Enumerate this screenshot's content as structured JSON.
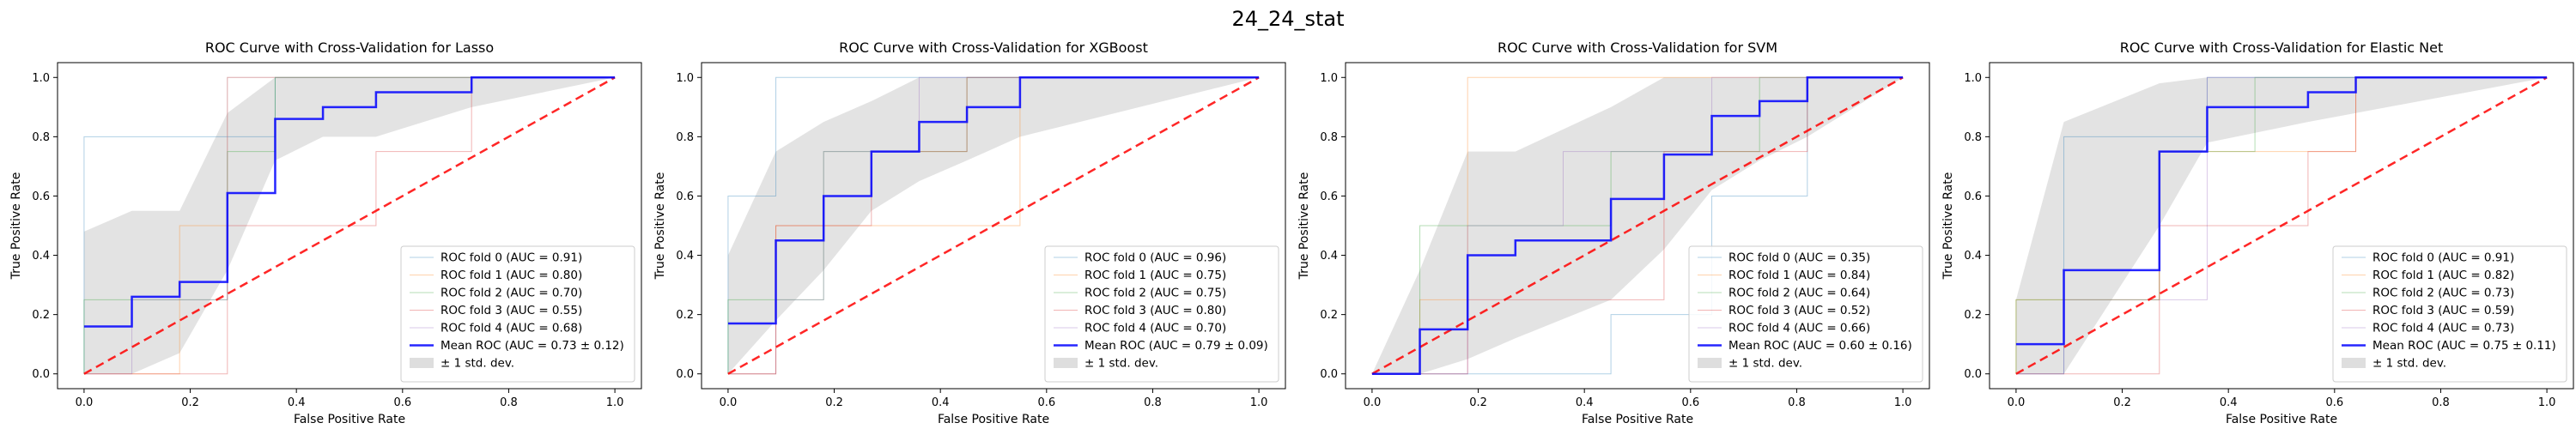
{
  "figure_title": "24_24_stat",
  "chart_data": [
    {
      "type": "line",
      "title": "ROC Curve with Cross-Validation for Lasso",
      "xlabel": "False Positive Rate",
      "ylabel": "True Positive Rate",
      "xlim": [
        -0.05,
        1.05
      ],
      "ylim": [
        -0.05,
        1.05
      ],
      "xticks": [
        "0.0",
        "0.2",
        "0.4",
        "0.6",
        "0.8",
        "1.0"
      ],
      "yticks": [
        "0.0",
        "0.2",
        "0.4",
        "0.6",
        "0.8",
        "1.0"
      ],
      "legend_position": "lower-right",
      "series": [
        {
          "name": "ROC fold 0 (AUC = 0.91)",
          "color": "#1f77b4",
          "x": [
            0,
            0,
            0.36,
            0.36,
            1
          ],
          "y": [
            0,
            0.8,
            0.8,
            1,
            1
          ]
        },
        {
          "name": "ROC fold 1 (AUC = 0.80)",
          "color": "#ff7f0e",
          "x": [
            0,
            0.18,
            0.18,
            0.27,
            0.27,
            1
          ],
          "y": [
            0,
            0,
            0.5,
            0.5,
            1,
            1
          ]
        },
        {
          "name": "ROC fold 2 (AUC = 0.70)",
          "color": "#2ca02c",
          "x": [
            0,
            0,
            0.27,
            0.27,
            0.36,
            0.36,
            1
          ],
          "y": [
            0,
            0.25,
            0.25,
            0.75,
            0.75,
            1,
            1
          ]
        },
        {
          "name": "ROC fold 3 (AUC = 0.55)",
          "color": "#d62728",
          "x": [
            0,
            0.27,
            0.27,
            0.55,
            0.55,
            0.73,
            0.73,
            1
          ],
          "y": [
            0,
            0,
            0.5,
            0.5,
            0.75,
            0.75,
            1,
            1
          ]
        },
        {
          "name": "ROC fold 4 (AUC = 0.68)",
          "color": "#9467bd",
          "x": [
            0,
            0.09,
            0.09,
            0.27,
            0.27,
            1
          ],
          "y": [
            0,
            0,
            0.25,
            0.25,
            1,
            1
          ]
        }
      ],
      "mean": {
        "name": "Mean ROC (AUC = 0.73 ± 0.12)",
        "color": "#0000ff",
        "x": [
          0,
          0.09,
          0.09,
          0.18,
          0.18,
          0.27,
          0.27,
          0.36,
          0.36,
          0.45,
          0.45,
          0.55,
          0.55,
          0.73,
          0.73,
          1
        ],
        "y": [
          0.16,
          0.16,
          0.26,
          0.26,
          0.31,
          0.31,
          0.61,
          0.61,
          0.86,
          0.86,
          0.9,
          0.9,
          0.95,
          0.95,
          1.0,
          1.0
        ]
      },
      "band": {
        "name": "± 1 std. dev.",
        "x": [
          0,
          0.09,
          0.18,
          0.27,
          0.36,
          0.45,
          0.55,
          0.73,
          1
        ],
        "upper": [
          0.48,
          0.55,
          0.55,
          0.88,
          1.0,
          1.0,
          1.0,
          1.0,
          1.0
        ],
        "lower": [
          0.0,
          0.0,
          0.07,
          0.35,
          0.72,
          0.8,
          0.8,
          0.9,
          1.0
        ]
      },
      "chance_line": {
        "x": [
          0,
          1
        ],
        "y": [
          0,
          1
        ],
        "color": "#ff0000"
      }
    },
    {
      "type": "line",
      "title": "ROC Curve with Cross-Validation for XGBoost",
      "xlabel": "False Positive Rate",
      "ylabel": "True Positive Rate",
      "xlim": [
        -0.05,
        1.05
      ],
      "ylim": [
        -0.05,
        1.05
      ],
      "xticks": [
        "0.0",
        "0.2",
        "0.4",
        "0.6",
        "0.8",
        "1.0"
      ],
      "yticks": [
        "0.0",
        "0.2",
        "0.4",
        "0.6",
        "0.8",
        "1.0"
      ],
      "legend_position": "lower-right",
      "series": [
        {
          "name": "ROC fold 0 (AUC = 0.96)",
          "color": "#1f77b4",
          "x": [
            0,
            0,
            0.09,
            0.09,
            1
          ],
          "y": [
            0,
            0.6,
            0.6,
            1,
            1
          ]
        },
        {
          "name": "ROC fold 1 (AUC = 0.75)",
          "color": "#ff7f0e",
          "x": [
            0,
            0.09,
            0.09,
            0.55,
            0.55,
            1
          ],
          "y": [
            0,
            0,
            0.5,
            0.5,
            1,
            1
          ]
        },
        {
          "name": "ROC fold 2 (AUC = 0.75)",
          "color": "#2ca02c",
          "x": [
            0,
            0,
            0.18,
            0.18,
            0.45,
            0.45,
            1
          ],
          "y": [
            0,
            0.25,
            0.25,
            0.75,
            0.75,
            1,
            1
          ]
        },
        {
          "name": "ROC fold 3 (AUC = 0.80)",
          "color": "#d62728",
          "x": [
            0,
            0.09,
            0.09,
            0.27,
            0.27,
            0.45,
            0.45,
            1
          ],
          "y": [
            0,
            0,
            0.5,
            0.5,
            0.75,
            0.75,
            1,
            1
          ]
        },
        {
          "name": "ROC fold 4 (AUC = 0.70)",
          "color": "#9467bd",
          "x": [
            0,
            0.09,
            0.09,
            0.18,
            0.18,
            0.36,
            0.36,
            1
          ],
          "y": [
            0,
            0,
            0.25,
            0.25,
            0.75,
            0.75,
            1,
            1
          ]
        }
      ],
      "mean": {
        "name": "Mean ROC (AUC = 0.79 ± 0.09)",
        "color": "#0000ff",
        "x": [
          0,
          0.09,
          0.09,
          0.18,
          0.18,
          0.27,
          0.27,
          0.36,
          0.36,
          0.45,
          0.45,
          0.55,
          0.55,
          1
        ],
        "y": [
          0.17,
          0.17,
          0.45,
          0.45,
          0.6,
          0.6,
          0.75,
          0.75,
          0.85,
          0.85,
          0.9,
          0.9,
          1.0,
          1.0
        ]
      },
      "band": {
        "name": "± 1 std. dev.",
        "x": [
          0,
          0.09,
          0.18,
          0.27,
          0.36,
          0.45,
          0.55,
          1
        ],
        "upper": [
          0.4,
          0.75,
          0.85,
          0.92,
          1.0,
          1.0,
          1.0,
          1.0
        ],
        "lower": [
          0.0,
          0.18,
          0.35,
          0.55,
          0.65,
          0.72,
          0.8,
          1.0
        ]
      },
      "chance_line": {
        "x": [
          0,
          1
        ],
        "y": [
          0,
          1
        ],
        "color": "#ff0000"
      }
    },
    {
      "type": "line",
      "title": "ROC Curve with Cross-Validation for SVM",
      "xlabel": "False Positive Rate",
      "ylabel": "True Positive Rate",
      "xlim": [
        -0.05,
        1.05
      ],
      "ylim": [
        -0.05,
        1.05
      ],
      "xticks": [
        "0.0",
        "0.2",
        "0.4",
        "0.6",
        "0.8",
        "1.0"
      ],
      "yticks": [
        "0.0",
        "0.2",
        "0.4",
        "0.6",
        "0.8",
        "1.0"
      ],
      "legend_position": "lower-right",
      "series": [
        {
          "name": "ROC fold 0 (AUC = 0.35)",
          "color": "#1f77b4",
          "x": [
            0,
            0.45,
            0.45,
            0.64,
            0.64,
            0.82,
            0.82,
            1
          ],
          "y": [
            0,
            0,
            0.2,
            0.2,
            0.6,
            0.6,
            1,
            1
          ]
        },
        {
          "name": "ROC fold 1 (AUC = 0.84)",
          "color": "#ff7f0e",
          "x": [
            0,
            0.09,
            0.09,
            0.18,
            0.18,
            1
          ],
          "y": [
            0,
            0,
            0.25,
            0.25,
            1,
            1
          ]
        },
        {
          "name": "ROC fold 2 (AUC = 0.64)",
          "color": "#2ca02c",
          "x": [
            0,
            0.09,
            0.09,
            0.45,
            0.45,
            0.73,
            0.73,
            1
          ],
          "y": [
            0,
            0,
            0.5,
            0.5,
            0.75,
            0.75,
            1,
            1
          ]
        },
        {
          "name": "ROC fold 3 (AUC = 0.52)",
          "color": "#d62728",
          "x": [
            0,
            0.18,
            0.18,
            0.55,
            0.55,
            0.82,
            0.82,
            1
          ],
          "y": [
            0,
            0,
            0.25,
            0.25,
            0.75,
            0.75,
            1,
            1
          ]
        },
        {
          "name": "ROC fold 4 (AUC = 0.66)",
          "color": "#9467bd",
          "x": [
            0,
            0.18,
            0.18,
            0.36,
            0.36,
            0.64,
            0.64,
            1
          ],
          "y": [
            0,
            0,
            0.5,
            0.5,
            0.75,
            0.75,
            1,
            1
          ]
        }
      ],
      "mean": {
        "name": "Mean ROC (AUC = 0.60 ± 0.16)",
        "color": "#0000ff",
        "x": [
          0,
          0.09,
          0.09,
          0.18,
          0.18,
          0.27,
          0.27,
          0.45,
          0.45,
          0.55,
          0.55,
          0.64,
          0.64,
          0.73,
          0.73,
          0.82,
          0.82,
          1
        ],
        "y": [
          0.0,
          0.0,
          0.15,
          0.15,
          0.4,
          0.4,
          0.45,
          0.45,
          0.59,
          0.59,
          0.74,
          0.74,
          0.87,
          0.87,
          0.92,
          0.92,
          1.0,
          1.0
        ]
      },
      "band": {
        "name": "± 1 std. dev.",
        "x": [
          0,
          0.09,
          0.18,
          0.27,
          0.45,
          0.55,
          0.64,
          0.73,
          0.82,
          1
        ],
        "upper": [
          0.0,
          0.35,
          0.75,
          0.75,
          0.9,
          1.0,
          1.0,
          1.0,
          1.0,
          1.0
        ],
        "lower": [
          0.0,
          0.0,
          0.05,
          0.12,
          0.25,
          0.42,
          0.62,
          0.72,
          0.8,
          1.0
        ]
      },
      "chance_line": {
        "x": [
          0,
          1
        ],
        "y": [
          0,
          1
        ],
        "color": "#ff0000"
      }
    },
    {
      "type": "line",
      "title": "ROC Curve with Cross-Validation for Elastic Net",
      "xlabel": "False Positive Rate",
      "ylabel": "True Positive Rate",
      "xlim": [
        -0.05,
        1.05
      ],
      "ylim": [
        -0.05,
        1.05
      ],
      "xticks": [
        "0.0",
        "0.2",
        "0.4",
        "0.6",
        "0.8",
        "1.0"
      ],
      "yticks": [
        "0.0",
        "0.2",
        "0.4",
        "0.6",
        "0.8",
        "1.0"
      ],
      "legend_position": "lower-right",
      "series": [
        {
          "name": "ROC fold 0 (AUC = 0.91)",
          "color": "#1f77b4",
          "x": [
            0,
            0.09,
            0.09,
            0.36,
            0.36,
            1
          ],
          "y": [
            0,
            0,
            0.8,
            0.8,
            1,
            1
          ]
        },
        {
          "name": "ROC fold 1 (AUC = 0.82)",
          "color": "#ff7f0e",
          "x": [
            0,
            0,
            0.27,
            0.27,
            0.64,
            0.64,
            1
          ],
          "y": [
            0,
            0.25,
            0.25,
            0.75,
            0.75,
            1,
            1
          ]
        },
        {
          "name": "ROC fold 2 (AUC = 0.73)",
          "color": "#2ca02c",
          "x": [
            0,
            0,
            0.27,
            0.27,
            0.45,
            0.45,
            1
          ],
          "y": [
            0,
            0.25,
            0.25,
            0.75,
            0.75,
            1,
            1
          ]
        },
        {
          "name": "ROC fold 3 (AUC = 0.59)",
          "color": "#d62728",
          "x": [
            0,
            0.27,
            0.27,
            0.55,
            0.55,
            0.64,
            0.64,
            1
          ],
          "y": [
            0,
            0,
            0.5,
            0.5,
            0.75,
            0.75,
            1,
            1
          ]
        },
        {
          "name": "ROC fold 4 (AUC = 0.73)",
          "color": "#9467bd",
          "x": [
            0,
            0.09,
            0.09,
            0.36,
            0.36,
            1
          ],
          "y": [
            0,
            0,
            0.25,
            0.25,
            1,
            1
          ]
        }
      ],
      "mean": {
        "name": "Mean ROC (AUC = 0.75 ± 0.11)",
        "color": "#0000ff",
        "x": [
          0,
          0.09,
          0.09,
          0.27,
          0.27,
          0.36,
          0.36,
          0.55,
          0.55,
          0.64,
          0.64,
          1
        ],
        "y": [
          0.1,
          0.1,
          0.35,
          0.35,
          0.75,
          0.75,
          0.9,
          0.9,
          0.95,
          0.95,
          1.0,
          1.0
        ]
      },
      "band": {
        "name": "± 1 std. dev.",
        "x": [
          0,
          0.09,
          0.27,
          0.36,
          0.55,
          0.64,
          1
        ],
        "upper": [
          0.25,
          0.85,
          0.98,
          1.0,
          1.0,
          1.0,
          1.0
        ],
        "lower": [
          0.0,
          0.0,
          0.5,
          0.78,
          0.85,
          0.88,
          1.0
        ]
      },
      "chance_line": {
        "x": [
          0,
          1
        ],
        "y": [
          0,
          1
        ],
        "color": "#ff0000"
      }
    }
  ]
}
